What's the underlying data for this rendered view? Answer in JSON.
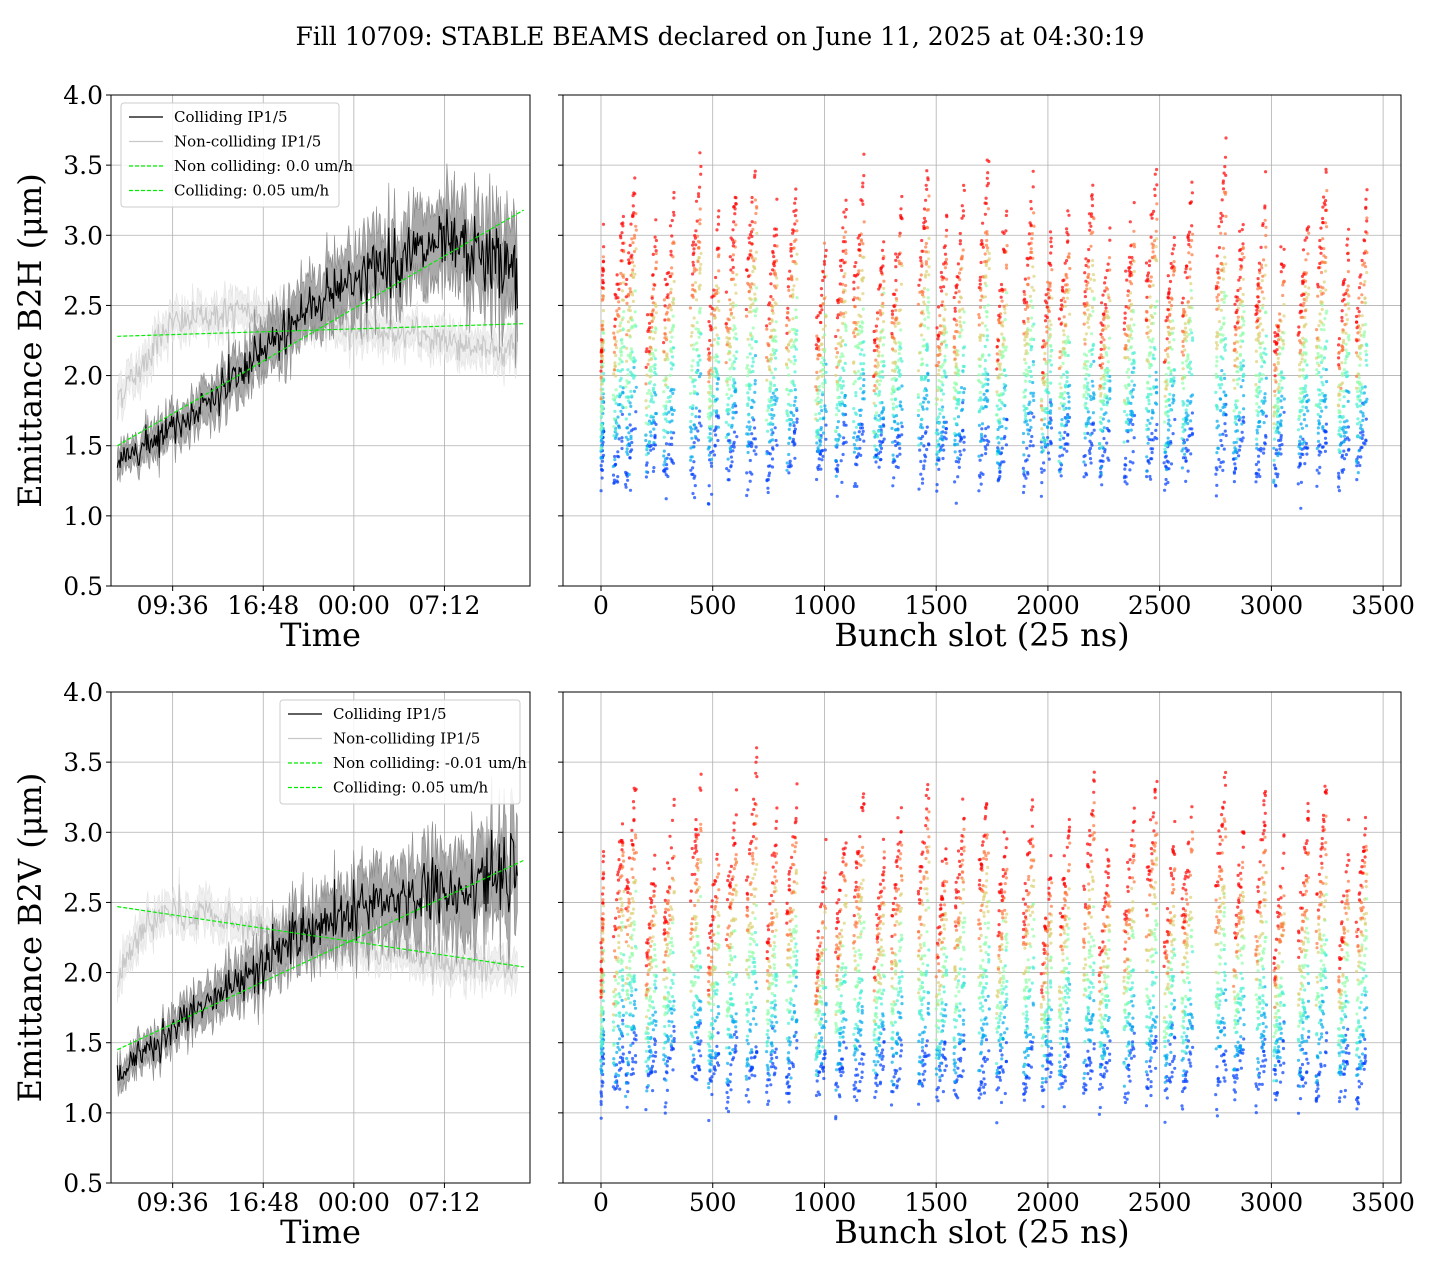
{
  "figure_title": "Fill 10709: STABLE BEAMS declared on June 11, 2025 at 04:30:19",
  "chart_data": [
    {
      "id": "h_time",
      "type": "line",
      "xlabel": "Time",
      "ylabel": "Emittance B2H (μm)",
      "x_ticks": [
        "09:36",
        "16:48",
        "00:00",
        "07:12"
      ],
      "x_tick_hours": [
        9.6,
        16.8,
        24.0,
        31.2
      ],
      "xlim_hours": [
        4.7,
        38.0
      ],
      "ylim": [
        0.5,
        4.0
      ],
      "y_ticks": [
        "0.5",
        "1.0",
        "1.5",
        "2.0",
        "2.5",
        "3.0",
        "3.5",
        "4.0"
      ],
      "grid": true,
      "legend_position": "upper-left",
      "series": [
        {
          "name": "Colliding IP1/5",
          "color": "#000000",
          "band_color": "#8c8c8c",
          "x_hours": [
            5.2,
            8,
            11,
            14,
            17,
            20,
            23,
            26,
            29,
            32,
            35,
            37
          ],
          "y": [
            1.38,
            1.55,
            1.72,
            1.92,
            2.18,
            2.45,
            2.65,
            2.78,
            2.88,
            2.92,
            2.82,
            2.74
          ]
        },
        {
          "name": "Non-colliding IP1/5",
          "color": "#c8c8c8",
          "band_color": "#e4e4e4",
          "x_hours": [
            5.2,
            7,
            9,
            12,
            15,
            18,
            21,
            24,
            27,
            30,
            33,
            36,
            37
          ],
          "y": [
            1.85,
            2.05,
            2.35,
            2.42,
            2.45,
            2.4,
            2.4,
            2.35,
            2.3,
            2.28,
            2.22,
            2.15,
            2.25
          ]
        },
        {
          "name": "Non colliding: 0.0 um/h",
          "color": "#00ee00",
          "dashed": true,
          "x_hours": [
            5.2,
            37.5
          ],
          "y": [
            2.28,
            2.37
          ]
        },
        {
          "name": "Colliding: 0.05 um/h",
          "color": "#00ee00",
          "dashed": true,
          "x_hours": [
            5.2,
            37.5
          ],
          "y": [
            1.5,
            3.18
          ]
        }
      ]
    },
    {
      "id": "h_bunch",
      "type": "scatter",
      "xlabel": "Bunch slot (25 ns)",
      "xlim": [
        -170,
        3580
      ],
      "ylim": [
        0.5,
        4.0
      ],
      "x_ticks": [
        0,
        500,
        1000,
        1500,
        2000,
        2500,
        3000,
        3500
      ],
      "grid": true,
      "colormap": "rainbow (blue = early, red = late)",
      "train_starts": [
        0,
        55,
        110,
        200,
        280,
        400,
        480,
        560,
        650,
        740,
        830,
        960,
        1050,
        1130,
        1220,
        1300,
        1420,
        1500,
        1580,
        1690,
        1770,
        1890,
        1970,
        2050,
        2160,
        2230,
        2340,
        2440,
        2520,
        2600,
        2750,
        2830,
        2930,
        3010,
        3120,
        3200,
        3300,
        3380
      ],
      "train_length": 48,
      "early_mean": 1.45,
      "late_mean_range": [
        2.5,
        3.1
      ]
    },
    {
      "id": "v_time",
      "type": "line",
      "xlabel": "Time",
      "ylabel": "Emittance B2V (μm)",
      "x_ticks": [
        "09:36",
        "16:48",
        "00:00",
        "07:12"
      ],
      "x_tick_hours": [
        9.6,
        16.8,
        24.0,
        31.2
      ],
      "xlim_hours": [
        4.7,
        38.0
      ],
      "ylim": [
        0.5,
        4.0
      ],
      "y_ticks": [
        "0.5",
        "1.0",
        "1.5",
        "2.0",
        "2.5",
        "3.0",
        "3.5",
        "4.0"
      ],
      "grid": true,
      "legend_position": "upper-right",
      "series": [
        {
          "name": "Colliding IP1/5",
          "color": "#000000",
          "band_color": "#8c8c8c",
          "x_hours": [
            5.2,
            8,
            11,
            14,
            17,
            20,
            23,
            26,
            29,
            32,
            35,
            37
          ],
          "y": [
            1.25,
            1.5,
            1.68,
            1.88,
            2.1,
            2.25,
            2.38,
            2.48,
            2.55,
            2.62,
            2.7,
            2.75
          ]
        },
        {
          "name": "Non-colliding IP1/5",
          "color": "#c8c8c8",
          "band_color": "#e4e4e4",
          "x_hours": [
            5.2,
            7,
            9,
            12,
            15,
            18,
            21,
            24,
            27,
            30,
            33,
            36,
            37
          ],
          "y": [
            1.95,
            2.3,
            2.42,
            2.4,
            2.35,
            2.3,
            2.25,
            2.2,
            2.15,
            2.1,
            2.05,
            2.05,
            2.02
          ]
        },
        {
          "name": "Non colliding: -0.01 um/h",
          "color": "#00ee00",
          "dashed": true,
          "x_hours": [
            5.2,
            37.5
          ],
          "y": [
            2.47,
            2.04
          ]
        },
        {
          "name": "Colliding: 0.05 um/h",
          "color": "#00ee00",
          "dashed": true,
          "x_hours": [
            5.2,
            37.5
          ],
          "y": [
            1.45,
            2.8
          ]
        }
      ]
    },
    {
      "id": "v_bunch",
      "type": "scatter",
      "xlabel": "Bunch slot (25 ns)",
      "xlim": [
        -170,
        3580
      ],
      "ylim": [
        0.5,
        4.0
      ],
      "x_ticks": [
        0,
        500,
        1000,
        1500,
        2000,
        2500,
        3000,
        3500
      ],
      "grid": true,
      "colormap": "rainbow (blue = early, red = late)",
      "train_starts": [
        0,
        55,
        110,
        200,
        280,
        400,
        480,
        560,
        650,
        740,
        830,
        960,
        1050,
        1130,
        1220,
        1300,
        1420,
        1500,
        1580,
        1690,
        1770,
        1890,
        1970,
        2050,
        2160,
        2230,
        2340,
        2440,
        2520,
        2600,
        2750,
        2830,
        2930,
        3010,
        3120,
        3200,
        3300,
        3380
      ],
      "train_length": 48,
      "early_mean": 1.3,
      "late_mean_range": [
        2.4,
        3.0
      ]
    }
  ]
}
